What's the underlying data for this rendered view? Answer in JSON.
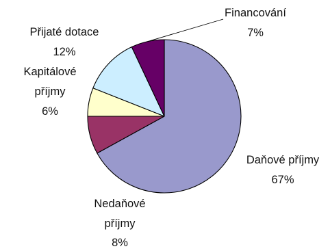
{
  "chart_data": {
    "type": "pie",
    "title": "",
    "start_angle_deg": 0,
    "direction": "clockwise",
    "slices": [
      {
        "label": "Daňové příjmy",
        "label_lines": [
          "Daňové příjmy"
        ],
        "percent_text": "67%",
        "value": 67,
        "color": "#9999cc"
      },
      {
        "label": "Nedaňové příjmy",
        "label_lines": [
          "Nedaňové",
          "příjmy"
        ],
        "percent_text": "8%",
        "value": 8,
        "color": "#993366"
      },
      {
        "label": "Kapitálové příjmy",
        "label_lines": [
          "Kapitálové",
          "příjmy"
        ],
        "percent_text": "6%",
        "value": 6,
        "color": "#ffffcc"
      },
      {
        "label": "Přijaté dotace",
        "label_lines": [
          "Přijaté dotace"
        ],
        "percent_text": "12%",
        "value": 12,
        "color": "#cceeff"
      },
      {
        "label": "Financování",
        "label_lines": [
          "Financování"
        ],
        "percent_text": "7%",
        "value": 7,
        "color": "#660066"
      }
    ]
  }
}
